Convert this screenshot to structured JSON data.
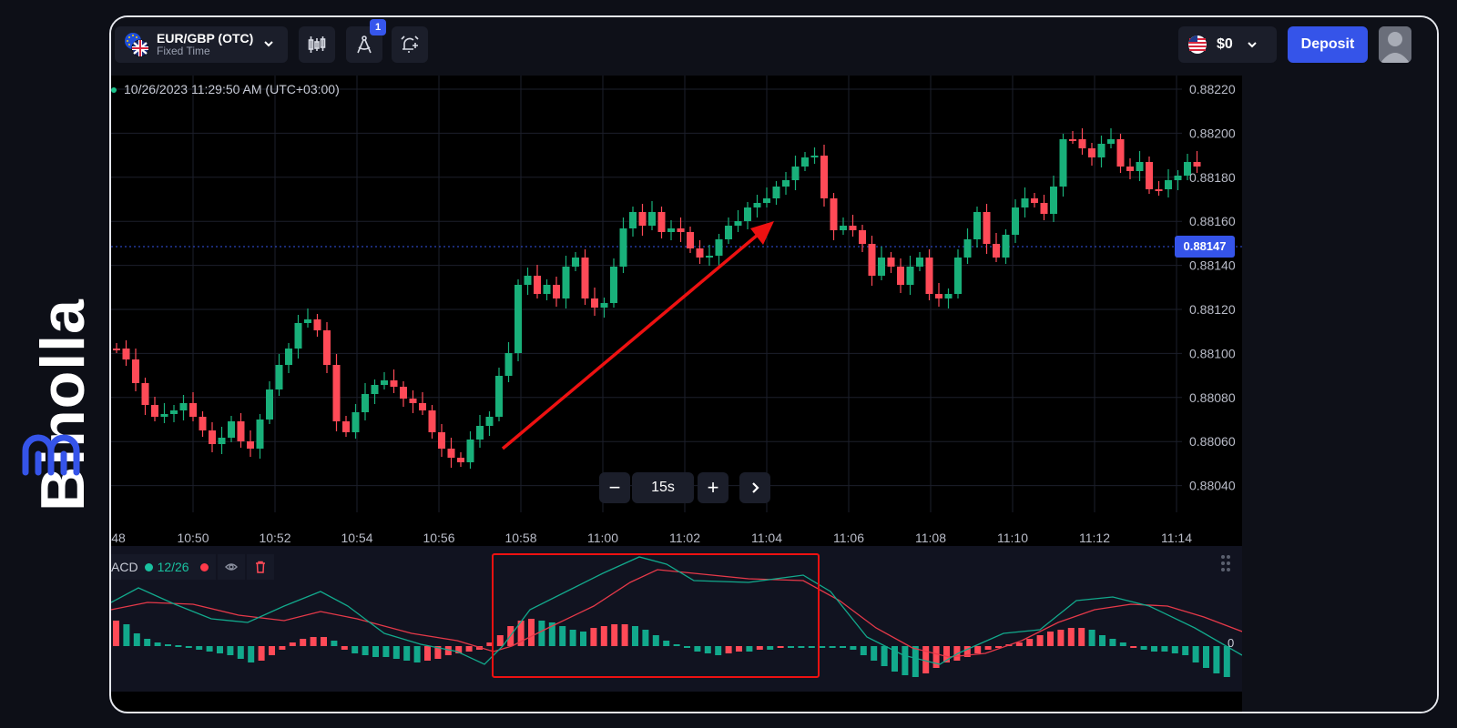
{
  "brand": {
    "name": "Binolla"
  },
  "asset": {
    "name": "EUR/GBP (OTC)",
    "type": "Fixed Time"
  },
  "toolbar": {
    "drawing_badge": "1"
  },
  "account": {
    "balance": "$0",
    "deposit_label": "Deposit"
  },
  "chart": {
    "timestamp": "10/26/2023  11:29:50 AM  (UTC+03:00)",
    "current_price": "0.88147",
    "price_ticks": [
      "0.88220",
      "0.88200",
      "0.88180",
      "0.88160",
      "0.88140",
      "0.88120",
      "0.88100",
      "0.88080",
      "0.88060",
      "0.88040"
    ],
    "time_ticks": [
      "48",
      "10:50",
      "10:52",
      "10:54",
      "10:56",
      "10:58",
      "11:00",
      "11:02",
      "11:04",
      "11:06",
      "11:08",
      "11:10",
      "11:12",
      "11:14"
    ],
    "zoom": {
      "out": "−",
      "level": "15s",
      "in": "+"
    }
  },
  "indicator": {
    "name": "ACD",
    "params": "12/26",
    "zero_label": "0"
  },
  "colors": {
    "bull": "#19b07a",
    "bear": "#ff4a57",
    "accent": "#3554e9",
    "annotation": "#ee1111"
  },
  "icons": [
    "eu-flag-icon",
    "uk-flag-icon",
    "chevron-down-icon",
    "candles-icon",
    "drawing-compass-icon",
    "alarm-plus-icon",
    "us-flag-icon",
    "user-avatar-icon",
    "chevron-right-icon",
    "eye-icon",
    "trash-icon",
    "drag-handle-icon"
  ]
}
